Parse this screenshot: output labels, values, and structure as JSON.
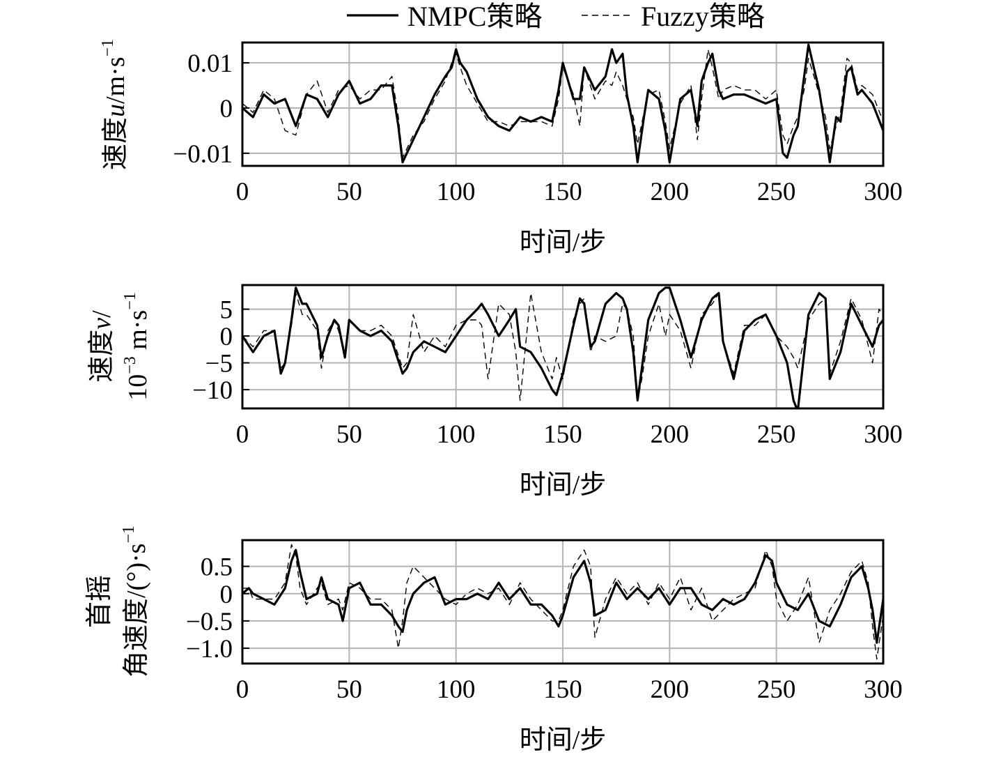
{
  "legend": {
    "placement": "top-center",
    "items": [
      {
        "label": "NMPC策略",
        "style": "solid"
      },
      {
        "label": "Fuzzy策略",
        "style": "dashed"
      }
    ]
  },
  "chart_data": [
    {
      "type": "line",
      "xlabel": "时间/步",
      "ylabel": [
        "速度",
        "u",
        "/m·s",
        "−1"
      ],
      "xlim": [
        0,
        300
      ],
      "ylim": [
        -0.0128,
        0.0145
      ],
      "xticks": [
        0,
        50,
        100,
        150,
        200,
        250,
        300
      ],
      "xtick_labels": [
        "0",
        "50",
        "100",
        "150",
        "200",
        "250",
        "300"
      ],
      "yticks": [
        0.01,
        0,
        -0.01
      ],
      "ytick_labels": [
        "0.01",
        "0",
        "−0.01"
      ],
      "grid": true,
      "series": [
        {
          "name": "NMPC策略",
          "style": "solid",
          "x": [
            0,
            5,
            10,
            15,
            20,
            25,
            30,
            35,
            40,
            45,
            50,
            55,
            60,
            65,
            70,
            73,
            75,
            77,
            80,
            85,
            90,
            95,
            98,
            100,
            102,
            105,
            110,
            115,
            120,
            125,
            130,
            135,
            140,
            145,
            148,
            150,
            155,
            158,
            160,
            165,
            170,
            173,
            175,
            178,
            180,
            183,
            185,
            188,
            190,
            195,
            198,
            200,
            205,
            210,
            213,
            215,
            218,
            220,
            223,
            225,
            230,
            235,
            240,
            245,
            250,
            253,
            255,
            258,
            260,
            263,
            265,
            267,
            270,
            273,
            275,
            278,
            280,
            283,
            285,
            288,
            290,
            295,
            300
          ],
          "y": [
            0,
            -0.002,
            0.003,
            0.001,
            0.002,
            -0.004,
            0.003,
            0.002,
            -0.002,
            0.003,
            0.006,
            0.001,
            0.002,
            0.005,
            0.005,
            -0.004,
            -0.012,
            -0.01,
            -0.007,
            -0.002,
            0.003,
            0.007,
            0.009,
            0.013,
            0.01,
            0.008,
            0.002,
            -0.002,
            -0.004,
            -0.005,
            -0.002,
            -0.003,
            -0.002,
            -0.003,
            0.004,
            0.01,
            0.002,
            0.002,
            0.009,
            0.004,
            0.007,
            0.013,
            0.01,
            0.012,
            0.003,
            -0.004,
            -0.012,
            -0.002,
            0.004,
            0.002,
            -0.005,
            -0.012,
            0.002,
            0.004,
            -0.004,
            0.006,
            0.01,
            0.012,
            0.004,
            0.002,
            0.003,
            0.003,
            0.002,
            0.001,
            0.002,
            -0.01,
            -0.011,
            -0.006,
            -0.004,
            0.007,
            0.014,
            0.01,
            0.004,
            -0.005,
            -0.012,
            -0.002,
            -0.003,
            0.008,
            0.009,
            0.003,
            0.004,
            0.001,
            -0.005
          ]
        },
        {
          "name": "Fuzzy策略",
          "style": "dashed",
          "x": [
            0,
            5,
            10,
            15,
            20,
            25,
            30,
            35,
            40,
            45,
            50,
            55,
            60,
            65,
            70,
            73,
            75,
            77,
            80,
            85,
            90,
            95,
            98,
            100,
            102,
            105,
            110,
            115,
            120,
            125,
            130,
            135,
            140,
            145,
            148,
            150,
            155,
            158,
            160,
            165,
            170,
            173,
            175,
            178,
            180,
            183,
            185,
            188,
            190,
            195,
            198,
            200,
            205,
            210,
            213,
            215,
            218,
            220,
            223,
            225,
            230,
            235,
            240,
            245,
            250,
            253,
            255,
            258,
            260,
            263,
            265,
            267,
            270,
            273,
            275,
            278,
            280,
            283,
            285,
            288,
            290,
            295,
            300
          ],
          "y": [
            0.001,
            -0.001,
            0.004,
            0.002,
            -0.005,
            -0.006,
            0.003,
            0.006,
            -0.001,
            0.004,
            0.005,
            0.002,
            0.004,
            0.004,
            0.007,
            -0.002,
            -0.011,
            -0.009,
            -0.006,
            -0.003,
            0.002,
            0.006,
            0.01,
            0.012,
            0.009,
            0.005,
            0.001,
            -0.003,
            -0.003,
            -0.004,
            -0.003,
            -0.003,
            -0.003,
            -0.004,
            0.002,
            0.009,
            0.003,
            -0.004,
            0.009,
            0.002,
            0.006,
            0.005,
            0.008,
            0.005,
            0.002,
            -0.002,
            -0.008,
            -0.001,
            0.003,
            0.004,
            -0.003,
            -0.009,
            0.001,
            0.005,
            -0.007,
            0.002,
            0.013,
            0.009,
            0.002,
            0.004,
            0.005,
            0.004,
            0.004,
            0.002,
            0.004,
            -0.006,
            -0.008,
            -0.004,
            -0.002,
            0.004,
            0.011,
            0.008,
            0.003,
            -0.002,
            -0.009,
            -0.004,
            -0.001,
            0.011,
            0.01,
            0.004,
            0.005,
            0.003,
            -0.003
          ]
        }
      ]
    },
    {
      "type": "line",
      "xlabel": "时间/步",
      "ylabel": [
        "速度",
        "v",
        "/",
        "10",
        "−3",
        " m·s",
        "−1"
      ],
      "xlim": [
        0,
        300
      ],
      "ylim": [
        -13.5,
        9.5
      ],
      "xticks": [
        0,
        50,
        100,
        150,
        200,
        250,
        300
      ],
      "xtick_labels": [
        "0",
        "50",
        "100",
        "150",
        "200",
        "250",
        "300"
      ],
      "yticks": [
        5,
        0,
        -5,
        -10
      ],
      "ytick_labels": [
        "5",
        "0",
        "−5",
        "−10"
      ],
      "grid": true,
      "series": [
        {
          "name": "NMPC策略",
          "style": "solid",
          "x": [
            0,
            5,
            10,
            15,
            18,
            20,
            23,
            25,
            28,
            30,
            35,
            37,
            40,
            43,
            45,
            48,
            50,
            55,
            60,
            65,
            70,
            75,
            77,
            80,
            85,
            90,
            95,
            100,
            105,
            110,
            112,
            115,
            120,
            125,
            128,
            130,
            135,
            140,
            145,
            147,
            150,
            155,
            158,
            160,
            163,
            165,
            170,
            175,
            178,
            180,
            183,
            185,
            187,
            190,
            195,
            198,
            200,
            205,
            210,
            215,
            220,
            223,
            225,
            230,
            235,
            240,
            245,
            250,
            255,
            258,
            260,
            265,
            270,
            273,
            275,
            280,
            285,
            290,
            295,
            298,
            300
          ],
          "y": [
            0,
            -3,
            0,
            1,
            -7,
            -5,
            3,
            9,
            6,
            6,
            2,
            -4,
            0,
            3,
            2,
            -4,
            3,
            1,
            0,
            1,
            -1,
            -7,
            -6,
            -3,
            -1,
            -2,
            -3,
            0,
            3,
            5,
            6,
            4,
            0,
            3,
            5,
            -2,
            -3,
            -6,
            -10,
            -11,
            -7,
            2,
            7,
            6,
            -2,
            -1,
            6,
            8,
            7,
            5,
            -3,
            -12,
            -6,
            3,
            8,
            9,
            9,
            3,
            -4,
            3,
            7,
            8,
            -1,
            -8,
            1,
            3,
            4,
            0,
            -5,
            -12,
            -14,
            4,
            8,
            7,
            -8,
            -3,
            6,
            2,
            -2,
            2,
            3
          ]
        },
        {
          "name": "Fuzzy策略",
          "style": "dashed",
          "x": [
            0,
            5,
            10,
            15,
            18,
            20,
            23,
            25,
            28,
            30,
            35,
            37,
            40,
            43,
            45,
            48,
            50,
            55,
            60,
            65,
            70,
            75,
            77,
            80,
            85,
            90,
            95,
            100,
            105,
            110,
            112,
            115,
            120,
            125,
            128,
            130,
            135,
            140,
            145,
            147,
            150,
            155,
            158,
            160,
            163,
            165,
            170,
            175,
            178,
            180,
            183,
            185,
            187,
            190,
            195,
            198,
            200,
            205,
            210,
            215,
            220,
            223,
            225,
            230,
            235,
            240,
            245,
            250,
            255,
            258,
            260,
            265,
            270,
            273,
            275,
            280,
            285,
            290,
            295,
            298,
            300
          ],
          "y": [
            0,
            -2,
            1,
            1,
            -6,
            -5,
            2,
            8,
            4,
            4,
            1,
            -6,
            1,
            3,
            1,
            -4,
            3,
            1,
            1,
            2,
            0,
            -6,
            -5,
            4,
            -3,
            0,
            -2,
            2,
            3,
            3,
            2,
            -8,
            6,
            4,
            -3,
            -12,
            8,
            -3,
            -8,
            -4,
            -8,
            3,
            6,
            7,
            -3,
            0,
            -1,
            0,
            6,
            5,
            0,
            -12,
            -8,
            0,
            6,
            0,
            4,
            1,
            -6,
            4,
            6,
            8,
            -1,
            -7,
            2,
            2,
            4,
            0,
            -2,
            -4,
            -6,
            3,
            6,
            7,
            -7,
            -1,
            7,
            3,
            -5,
            5,
            4
          ]
        }
      ]
    },
    {
      "type": "line",
      "xlabel": "时间/步",
      "ylabel": [
        "首摇",
        "角速度/(°)·s",
        "−1"
      ],
      "xlim": [
        0,
        300
      ],
      "ylim": [
        -1.28,
        0.98
      ],
      "xticks": [
        0,
        50,
        100,
        150,
        200,
        250,
        300
      ],
      "xtick_labels": [
        "0",
        "50",
        "100",
        "150",
        "200",
        "250",
        "300"
      ],
      "yticks": [
        0.5,
        0,
        -0.5,
        -1.0
      ],
      "ytick_labels": [
        "0.5",
        "0",
        "−0.5",
        "−1.0"
      ],
      "grid": true,
      "series": [
        {
          "name": "NMPC策略",
          "style": "solid",
          "x": [
            0,
            3,
            5,
            10,
            15,
            20,
            23,
            25,
            27,
            30,
            35,
            37,
            40,
            45,
            47,
            50,
            55,
            60,
            65,
            70,
            73,
            75,
            77,
            80,
            85,
            90,
            95,
            100,
            105,
            110,
            115,
            120,
            125,
            130,
            135,
            140,
            145,
            148,
            150,
            155,
            160,
            163,
            165,
            170,
            175,
            180,
            185,
            190,
            195,
            200,
            205,
            210,
            215,
            220,
            225,
            230,
            235,
            240,
            245,
            248,
            250,
            255,
            260,
            265,
            270,
            275,
            280,
            285,
            290,
            293,
            295,
            297,
            300
          ],
          "y": [
            0,
            0.1,
            0,
            -0.1,
            -0.2,
            0.1,
            0.6,
            0.8,
            0.4,
            -0.1,
            0,
            0.3,
            -0.1,
            -0.2,
            -0.5,
            0.1,
            0.2,
            -0.2,
            -0.2,
            -0.4,
            -0.6,
            -0.7,
            -0.3,
            0,
            0.2,
            0.3,
            -0.2,
            -0.1,
            -0.1,
            0,
            -0.1,
            0.2,
            -0.1,
            0.1,
            -0.2,
            -0.2,
            -0.4,
            -0.6,
            -0.4,
            0.3,
            0.6,
            0.2,
            -0.4,
            -0.3,
            0.2,
            -0.1,
            0.1,
            -0.1,
            0.1,
            -0.2,
            0.1,
            0.1,
            -0.2,
            -0.3,
            -0.1,
            -0.2,
            -0.1,
            0.2,
            0.7,
            0.6,
            0.2,
            -0.2,
            -0.3,
            0,
            -0.5,
            -0.6,
            -0.2,
            0.3,
            0.5,
            0.1,
            -0.3,
            -0.9,
            -0.1
          ]
        },
        {
          "name": "Fuzzy策略",
          "style": "dashed",
          "x": [
            0,
            3,
            5,
            10,
            15,
            20,
            23,
            25,
            27,
            30,
            35,
            37,
            40,
            45,
            47,
            50,
            55,
            60,
            65,
            70,
            73,
            75,
            77,
            80,
            85,
            90,
            95,
            100,
            105,
            110,
            115,
            120,
            125,
            130,
            135,
            140,
            145,
            148,
            150,
            155,
            160,
            163,
            165,
            170,
            175,
            180,
            185,
            190,
            195,
            200,
            205,
            210,
            215,
            220,
            225,
            230,
            235,
            240,
            245,
            248,
            250,
            255,
            260,
            265,
            270,
            275,
            280,
            285,
            290,
            293,
            295,
            297,
            300
          ],
          "y": [
            0.1,
            0.1,
            -0.1,
            -0.1,
            -0.1,
            0.2,
            0.9,
            0.7,
            0.1,
            -0.2,
            0.1,
            0.2,
            -0.2,
            -0.1,
            -0.3,
            0.2,
            0.1,
            -0.1,
            -0.1,
            -0.3,
            -1.0,
            -0.5,
            0.2,
            0.5,
            0.3,
            0.1,
            -0.1,
            -0.2,
            0,
            0.1,
            0,
            0.1,
            -0.2,
            0.2,
            -0.1,
            -0.3,
            -0.5,
            -0.5,
            -0.3,
            0.5,
            0.8,
            0.5,
            -0.8,
            -0.1,
            0.3,
            0,
            0.2,
            -0.2,
            0.2,
            -0.1,
            0.3,
            -0.3,
            0.1,
            -0.5,
            -0.3,
            -0.1,
            0,
            0.1,
            0.8,
            0.5,
            -0.1,
            -0.5,
            -0.2,
            0.3,
            -0.9,
            -0.3,
            0,
            0.4,
            0.6,
            0.2,
            -0.6,
            -1.2,
            -0.4
          ]
        }
      ]
    }
  ]
}
